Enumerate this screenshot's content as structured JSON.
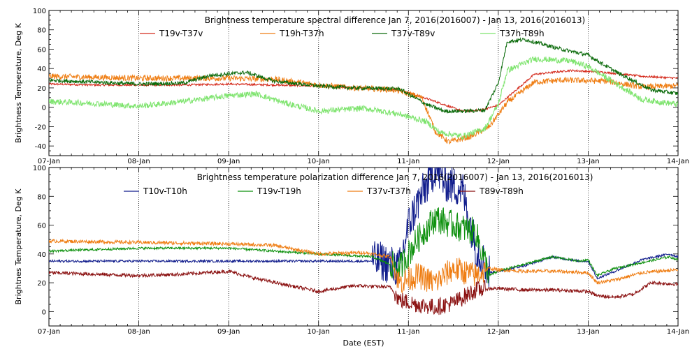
{
  "chart_data": [
    {
      "type": "line",
      "title": "Brightness temperature spectral difference    Jan  7, 2016(2016007) - Jan 13, 2016(2016013)",
      "ylabel": "Brightness Temperature, Deg K",
      "xlabel": "",
      "ylim": [
        -50,
        100
      ],
      "yticks": [
        -40,
        -20,
        0,
        20,
        40,
        60,
        80,
        100
      ],
      "xlim": [
        0,
        7
      ],
      "x_ticklabels": [
        "07-Jan",
        "08-Jan",
        "09-Jan",
        "10-Jan",
        "11-Jan",
        "12-Jan",
        "13-Jan",
        "14-Jan"
      ],
      "grid": "vertical dotted at day boundaries",
      "legend_position": "top",
      "series": [
        {
          "name": "T19v-T37v",
          "color": "#d42a1c",
          "x": [
            0,
            0.5,
            1,
            1.5,
            2,
            2.5,
            3,
            3.4,
            3.9,
            4.3,
            4.6,
            4.8,
            5.0,
            5.4,
            5.8,
            6.2,
            6.6,
            7.0
          ],
          "y": [
            24,
            23,
            23,
            23,
            24,
            23,
            22,
            20,
            18,
            6,
            -4,
            -3,
            2,
            34,
            38,
            36,
            32,
            30
          ],
          "noise": 1.0
        },
        {
          "name": "T19h-T37h",
          "color": "#ef7e14",
          "x": [
            0,
            0.5,
            1,
            1.5,
            2,
            2.5,
            3,
            3.4,
            3.85,
            4.15,
            4.3,
            4.45,
            4.7,
            4.9,
            5.1,
            5.4,
            5.7,
            6.2,
            6.6,
            7.0
          ],
          "y": [
            32,
            31,
            30,
            30,
            30,
            29,
            23,
            20,
            18,
            10,
            -25,
            -36,
            -30,
            -20,
            5,
            26,
            28,
            27,
            21,
            22
          ],
          "noise": 3.0
        },
        {
          "name": "T37v-T89v",
          "color": "#0a6a0a",
          "x": [
            0,
            0.5,
            1,
            1.5,
            1.8,
            2.2,
            2.5,
            3,
            3.4,
            3.9,
            4.2,
            4.4,
            4.6,
            4.85,
            5.0,
            5.1,
            5.3,
            5.7,
            6.0,
            6.3,
            6.7,
            7.0
          ],
          "y": [
            28,
            26,
            24,
            25,
            33,
            36,
            27,
            22,
            20,
            19,
            3,
            -4,
            -4,
            -3,
            25,
            68,
            70,
            60,
            54,
            37,
            18,
            14
          ],
          "noise": 2.0
        },
        {
          "name": "T37h-T89h",
          "color": "#7ee46e",
          "x": [
            0,
            0.5,
            1,
            1.5,
            2,
            2.3,
            2.6,
            3.0,
            3.5,
            3.9,
            4.2,
            4.35,
            4.6,
            4.85,
            5.0,
            5.1,
            5.4,
            5.8,
            6.0,
            6.3,
            6.6,
            7.0
          ],
          "y": [
            6,
            4,
            1,
            6,
            12,
            14,
            5,
            -4,
            -1,
            -7,
            -15,
            -26,
            -30,
            -22,
            3,
            38,
            50,
            48,
            42,
            25,
            8,
            3
          ],
          "noise": 3.0
        }
      ]
    },
    {
      "type": "line",
      "title": "Brightness temperature polarization difference    Jan  7, 2016(2016007) - Jan 13, 2016(2016013)",
      "ylabel": "Brightnes Temperature, Deg K",
      "xlabel": "Date (EST)",
      "ylim": [
        -10,
        100
      ],
      "yticks": [
        0,
        20,
        40,
        60,
        80,
        100
      ],
      "xlim": [
        0,
        7
      ],
      "x_ticklabels": [
        "07-Jan",
        "08-Jan",
        "09-Jan",
        "10-Jan",
        "11-Jan",
        "12-Jan",
        "13-Jan",
        "14-Jan"
      ],
      "grid": "vertical dotted at day boundaries",
      "legend_position": "top",
      "series": [
        {
          "name": "T10v-T10h",
          "color": "#101c8c",
          "x": [
            0,
            1,
            2,
            3,
            3.6,
            3.7,
            3.9,
            4.0,
            4.1,
            4.3,
            4.4,
            4.6,
            4.75,
            4.9,
            5.0,
            5.3,
            5.6,
            5.9,
            6.0,
            6.1,
            6.3,
            6.6,
            6.9,
            7.0
          ],
          "y": [
            35,
            35,
            35,
            35,
            35,
            35,
            30,
            60,
            75,
            100,
            90,
            85,
            45,
            27,
            28,
            32,
            38,
            35,
            35,
            23,
            28,
            36,
            40,
            38
          ],
          "noise": 0.8,
          "noisy_from": 3.6,
          "noisy_to": 4.9,
          "noisy_amp": 14
        },
        {
          "name": "T19v-T19h",
          "color": "#0c900c",
          "x": [
            0,
            1,
            2,
            3,
            3.6,
            3.9,
            4.1,
            4.3,
            4.5,
            4.75,
            4.9,
            5.0,
            5.3,
            5.6,
            5.9,
            6.0,
            6.1,
            6.3,
            6.6,
            6.9,
            7.0
          ],
          "y": [
            42,
            44,
            44,
            40,
            38,
            30,
            50,
            65,
            60,
            55,
            25,
            28,
            33,
            38,
            35,
            36,
            25,
            30,
            34,
            38,
            36
          ],
          "noise": 0.8,
          "noisy_from": 3.8,
          "noisy_to": 4.9,
          "noisy_amp": 10
        },
        {
          "name": "T37v-T37h",
          "color": "#ef7e14",
          "x": [
            0,
            1,
            2,
            2.5,
            3,
            3.5,
            3.8,
            3.9,
            4.1,
            4.3,
            4.5,
            4.75,
            4.9,
            5.0,
            5.3,
            5.6,
            6.0,
            6.1,
            6.3,
            6.6,
            7.0
          ],
          "y": [
            49,
            48,
            47,
            46,
            40,
            41,
            38,
            20,
            25,
            20,
            30,
            25,
            30,
            29,
            28,
            28,
            27,
            20,
            22,
            27,
            29
          ],
          "noise": 1.2,
          "noisy_from": 3.85,
          "noisy_to": 4.85,
          "noisy_amp": 9
        },
        {
          "name": "T89v-T89h",
          "color": "#8a1010",
          "x": [
            0,
            0.5,
            1,
            1.5,
            2,
            2.3,
            2.6,
            3.0,
            3.4,
            3.8,
            3.9,
            4.1,
            4.3,
            4.5,
            4.75,
            4.9,
            5.0,
            5.3,
            5.6,
            6.0,
            6.1,
            6.3,
            6.5,
            6.7,
            7.0
          ],
          "y": [
            27,
            26,
            25,
            26,
            28,
            23,
            19,
            14,
            18,
            17,
            8,
            5,
            3,
            6,
            15,
            16,
            16,
            15,
            15,
            14,
            11,
            10,
            12,
            20,
            19
          ],
          "noise": 1.2,
          "noisy_from": 3.85,
          "noisy_to": 4.85,
          "noisy_amp": 6
        }
      ]
    }
  ]
}
